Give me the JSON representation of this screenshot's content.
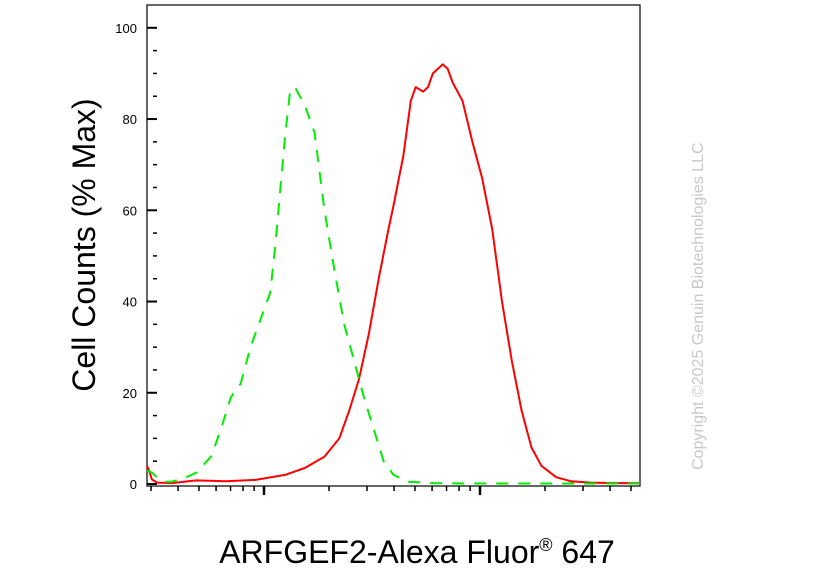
{
  "chart_data": {
    "type": "line",
    "xlabel_main": "ARFGEF2-Alexa Fluor",
    "xlabel_reg": "®",
    "xlabel_tail": " 647",
    "ylabel": "Cell Counts (% Max)",
    "ylim": [
      0,
      105
    ],
    "yticks": [
      {
        "value": 0,
        "label": "0"
      },
      {
        "value": 20,
        "label": "20"
      },
      {
        "value": 40,
        "label": "40"
      },
      {
        "value": 60,
        "label": "60"
      },
      {
        "value": 80,
        "label": "80"
      },
      {
        "value": 100,
        "label": "100"
      }
    ],
    "x_scale": "log",
    "x_tick_labels_shown": false,
    "series": [
      {
        "color": "#ff0000",
        "style": "solid",
        "points": [
          [
            0.0,
            4
          ],
          [
            0.004,
            3
          ],
          [
            0.01,
            1
          ],
          [
            0.02,
            0.3
          ],
          [
            0.05,
            0.2
          ],
          [
            0.1,
            0.8
          ],
          [
            0.16,
            0.6
          ],
          [
            0.22,
            0.9
          ],
          [
            0.28,
            2
          ],
          [
            0.32,
            3.5
          ],
          [
            0.36,
            6
          ],
          [
            0.39,
            10
          ],
          [
            0.41,
            16
          ],
          [
            0.43,
            23
          ],
          [
            0.45,
            33
          ],
          [
            0.47,
            45
          ],
          [
            0.49,
            56
          ],
          [
            0.5,
            61
          ],
          [
            0.52,
            72
          ],
          [
            0.535,
            84
          ],
          [
            0.545,
            87
          ],
          [
            0.56,
            86
          ],
          [
            0.57,
            87
          ],
          [
            0.58,
            90
          ],
          [
            0.6,
            92
          ],
          [
            0.61,
            91
          ],
          [
            0.62,
            88
          ],
          [
            0.64,
            84
          ],
          [
            0.66,
            75
          ],
          [
            0.68,
            67
          ],
          [
            0.7,
            56
          ],
          [
            0.72,
            40
          ],
          [
            0.74,
            27
          ],
          [
            0.76,
            16
          ],
          [
            0.78,
            8
          ],
          [
            0.8,
            4
          ],
          [
            0.83,
            1.5
          ],
          [
            0.86,
            0.6
          ],
          [
            0.9,
            0.3
          ],
          [
            0.95,
            0.2
          ],
          [
            1.0,
            0.2
          ]
        ]
      },
      {
        "color": "#00ee00",
        "style": "dashed",
        "points": [
          [
            0.0,
            3
          ],
          [
            0.01,
            2.5
          ],
          [
            0.02,
            1.5
          ],
          [
            0.03,
            0.5
          ],
          [
            0.05,
            0.5
          ],
          [
            0.08,
            1.5
          ],
          [
            0.1,
            2.5
          ],
          [
            0.13,
            6
          ],
          [
            0.15,
            12
          ],
          [
            0.17,
            19
          ],
          [
            0.19,
            22
          ],
          [
            0.21,
            30
          ],
          [
            0.23,
            36
          ],
          [
            0.25,
            42
          ],
          [
            0.26,
            52
          ],
          [
            0.27,
            64
          ],
          [
            0.28,
            76
          ],
          [
            0.29,
            86
          ],
          [
            0.3,
            87
          ],
          [
            0.31,
            85
          ],
          [
            0.32,
            83
          ],
          [
            0.34,
            77
          ],
          [
            0.36,
            60
          ],
          [
            0.38,
            47
          ],
          [
            0.4,
            35
          ],
          [
            0.42,
            27
          ],
          [
            0.44,
            19
          ],
          [
            0.46,
            12
          ],
          [
            0.48,
            5
          ],
          [
            0.5,
            2
          ],
          [
            0.53,
            0.5
          ],
          [
            0.58,
            0.2
          ],
          [
            0.65,
            0.1
          ],
          [
            0.75,
            0.1
          ],
          [
            0.85,
            0.1
          ],
          [
            1.0,
            0.1
          ]
        ]
      }
    ]
  },
  "watermark": "Copyright ©2025 Genuin Biotechnologies LLC"
}
